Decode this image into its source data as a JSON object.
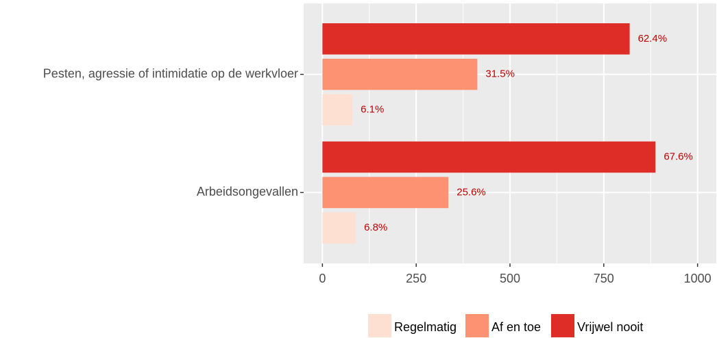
{
  "chart_data": {
    "type": "bar",
    "orientation": "horizontal",
    "categories": [
      "Pesten, agressie of intimidatie op de werkvloer",
      "Arbeidsongevallen"
    ],
    "series": [
      {
        "name": "Regelmatig",
        "color": "#fee0d2",
        "values": [
          80,
          89
        ],
        "value_labels": [
          "6.1%",
          "6.8%"
        ]
      },
      {
        "name": "Af en toe",
        "color": "#fc9272",
        "values": [
          413,
          336
        ],
        "value_labels": [
          "31.5%",
          "25.6%"
        ]
      },
      {
        "name": "Vrijwel nooit",
        "color": "#de2d26",
        "values": [
          819,
          888
        ],
        "value_labels": [
          "62.4%",
          "67.6%"
        ]
      }
    ],
    "xlim": [
      -50,
      1050
    ],
    "xticks": [
      0,
      250,
      500,
      750,
      1000
    ],
    "grid": true,
    "legend": "bottom"
  }
}
